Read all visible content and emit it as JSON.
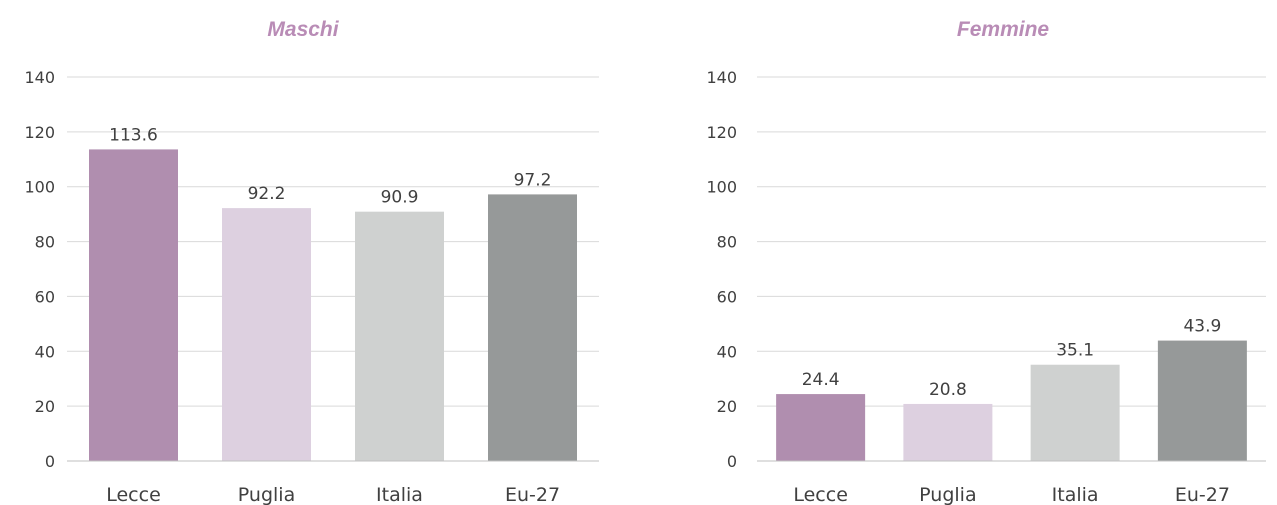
{
  "colors": {
    "title": "#b98cb6",
    "gridline": "#d9d9d9",
    "axis": "#bfbfbf",
    "text": "#404040"
  },
  "chart_data": [
    {
      "type": "bar",
      "title": "Maschi",
      "xlabel": "",
      "ylabel": "",
      "categories": [
        "Lecce",
        "Puglia",
        "Italia",
        "Eu-27"
      ],
      "values": [
        113.6,
        92.2,
        90.9,
        97.2
      ],
      "data_labels": [
        "113.6",
        "92.2",
        "90.9",
        "97.2"
      ],
      "bar_colors": [
        "#b08eaf",
        "#ddd0e0",
        "#cfd1d0",
        "#969999"
      ],
      "ylim": [
        0,
        140
      ],
      "yticks": [
        0,
        20,
        40,
        60,
        80,
        100,
        120,
        140
      ],
      "grid": true,
      "legend": "none"
    },
    {
      "type": "bar",
      "title": "Femmine",
      "xlabel": "",
      "ylabel": "",
      "categories": [
        "Lecce",
        "Puglia",
        "Italia",
        "Eu-27"
      ],
      "values": [
        24.4,
        20.8,
        35.1,
        43.9
      ],
      "data_labels": [
        "24.4",
        "20.8",
        "35.1",
        "43.9"
      ],
      "bar_colors": [
        "#b08eaf",
        "#ddd0e0",
        "#cfd1d0",
        "#969999"
      ],
      "ylim": [
        0,
        140
      ],
      "yticks": [
        0,
        20,
        40,
        60,
        80,
        100,
        120,
        140
      ],
      "grid": true,
      "legend": "none"
    }
  ]
}
